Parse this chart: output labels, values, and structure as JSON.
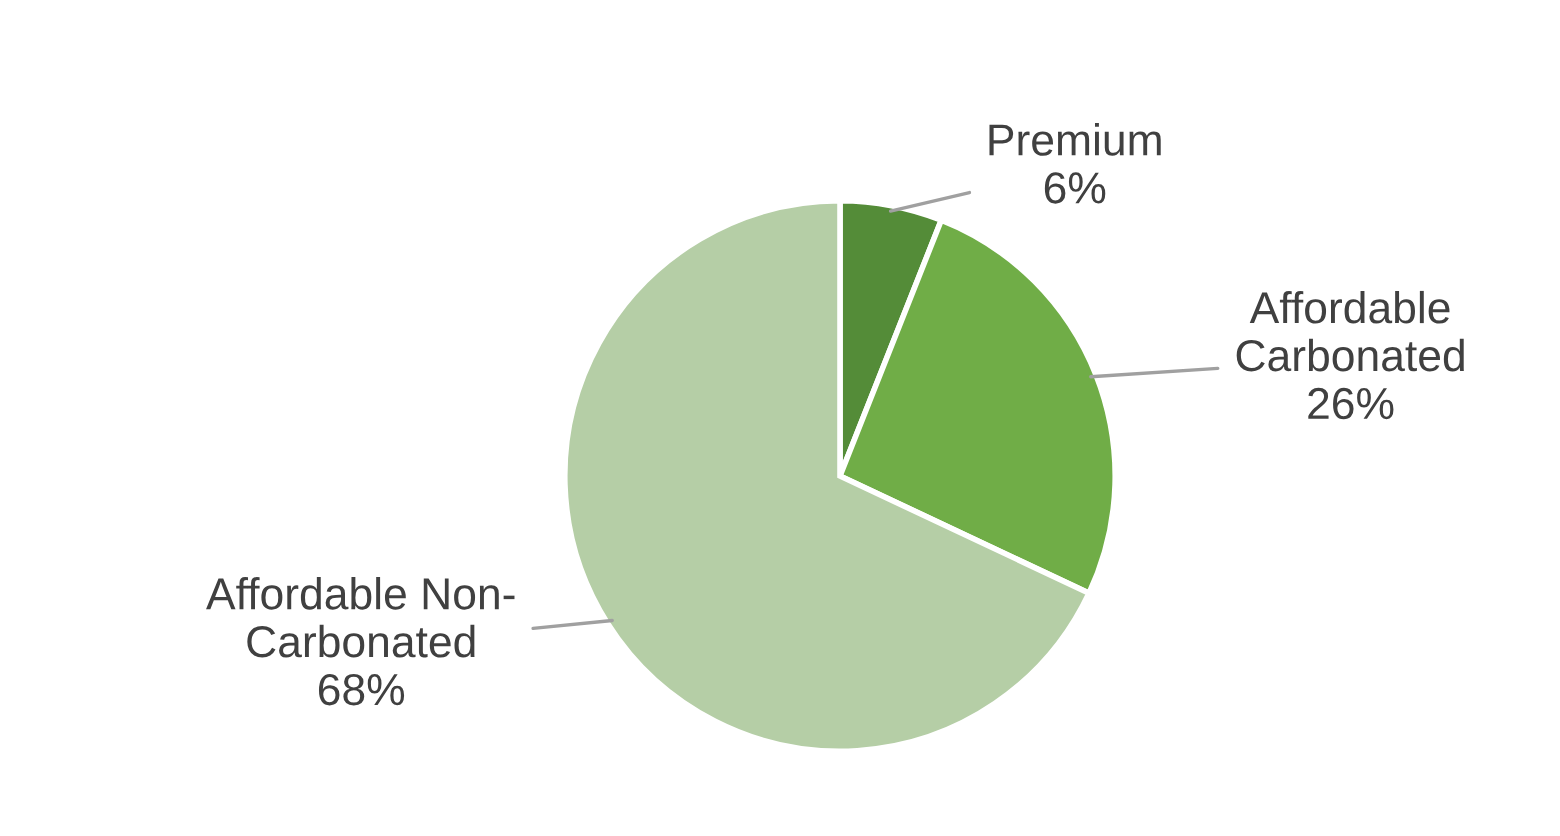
{
  "chart_data": {
    "type": "pie",
    "categories": [
      "Premium",
      "Affordable\nCarbonated",
      "Affordable Non-\nCarbonated"
    ],
    "values": [
      6,
      26,
      68
    ],
    "value_labels": [
      "6%",
      "26%",
      "68%"
    ],
    "colors": [
      "#548c38",
      "#70ad47",
      "#b5cea6"
    ]
  }
}
